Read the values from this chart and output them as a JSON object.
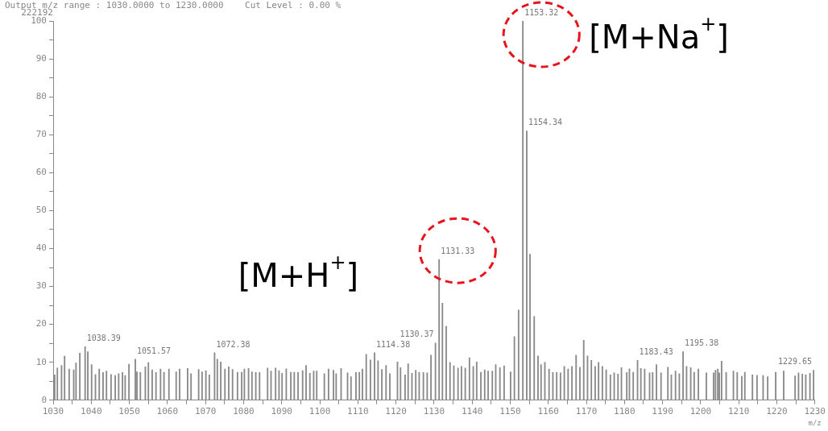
{
  "chart_data": {
    "type": "bar",
    "title": "Output m/z range : 1030.0000 to 1230.0000    Cut Level : 0.00 %",
    "xlabel": "m/z",
    "color": "#8a8a8a",
    "grid": false,
    "legend": false,
    "xlim": [
      1030,
      1230
    ],
    "xticks": [
      1030,
      {
        "value": 1035,
        "label": null
      },
      1040,
      {
        "value": 1045,
        "label": null
      },
      1050,
      {
        "value": 1055,
        "label": null
      },
      1060,
      {
        "value": 1065,
        "label": null
      },
      1070,
      {
        "value": 1075,
        "label": null
      },
      1080,
      {
        "value": 1085,
        "label": null
      },
      1090,
      {
        "value": 1095,
        "label": null
      },
      1100,
      {
        "value": 1105,
        "label": null
      },
      1110,
      {
        "value": 1115,
        "label": null
      },
      1120,
      {
        "value": 1125,
        "label": null
      },
      1130,
      {
        "value": 1135,
        "label": null
      },
      1140,
      {
        "value": 1145,
        "label": null
      },
      1150,
      {
        "value": 1155,
        "label": null
      },
      1160,
      {
        "value": 1165,
        "label": null
      },
      1170,
      {
        "value": 1175,
        "label": null
      },
      1180,
      {
        "value": 1185,
        "label": null
      },
      1190,
      {
        "value": 1195,
        "label": null
      },
      1200,
      {
        "value": 1205,
        "label": null
      },
      1210,
      {
        "value": 1215,
        "label": null
      },
      1220,
      {
        "value": 1225,
        "label": null
      },
      1230
    ],
    "ylim": [
      0,
      100
    ],
    "yticks": [
      0,
      {
        "value": 5,
        "label": null
      },
      10,
      {
        "value": 15,
        "label": null
      },
      20,
      {
        "value": 25,
        "label": null
      },
      30,
      {
        "value": 35,
        "label": null
      },
      40,
      {
        "value": 45,
        "label": null
      },
      50,
      {
        "value": 55,
        "label": null
      },
      60,
      {
        "value": 65,
        "label": null
      },
      70,
      {
        "value": 75,
        "label": null
      },
      80,
      {
        "value": 85,
        "label": null
      },
      90,
      {
        "value": 95,
        "label": null
      },
      100
    ],
    "x": [
      1030.4,
      1031.1,
      1032.2,
      1033.0,
      1034.2,
      1035.4,
      1036.0,
      1037.0,
      1038.39,
      1039.1,
      1040.1,
      1041.1,
      1042.1,
      1043.1,
      1044.0,
      1045.2,
      1046.3,
      1047.2,
      1048.2,
      1048.9,
      1049.9,
      1051.57,
      1052.0,
      1052.9,
      1054.2,
      1055.0,
      1056.0,
      1057.0,
      1058.2,
      1059.1,
      1060.4,
      1062.3,
      1063.2,
      1065.3,
      1066.2,
      1068.2,
      1069.1,
      1070.1,
      1071.0,
      1072.38,
      1073.1,
      1074.0,
      1075.1,
      1076.1,
      1077.1,
      1078.4,
      1079.5,
      1080.2,
      1081.3,
      1082.2,
      1083.2,
      1084.2,
      1086.3,
      1087.2,
      1088.4,
      1089.3,
      1090.1,
      1091.2,
      1092.4,
      1093.3,
      1094.3,
      1095.5,
      1096.4,
      1097.4,
      1098.4,
      1099.2,
      1101.2,
      1102.3,
      1103.6,
      1104.3,
      1105.6,
      1107.3,
      1108.2,
      1109.5,
      1110.4,
      1111.2,
      1112.2,
      1113.3,
      1114.38,
      1115.3,
      1116.3,
      1117.4,
      1118.4,
      1120.4,
      1121.2,
      1122.4,
      1123.2,
      1124.2,
      1125.2,
      1126.1,
      1127.2,
      1128.2,
      1129.2,
      1130.37,
      1131.33,
      1132.2,
      1133.2,
      1134.2,
      1135.2,
      1136.3,
      1137.2,
      1138.2,
      1139.3,
      1140.3,
      1141.2,
      1142.3,
      1143.3,
      1144.2,
      1145.3,
      1146.2,
      1147.3,
      1148.4,
      1150.1,
      1151.1,
      1152.2,
      1153.32,
      1154.34,
      1155.2,
      1156.3,
      1157.3,
      1158.1,
      1159.1,
      1160.2,
      1161.2,
      1162.2,
      1163.2,
      1164.2,
      1165.2,
      1166.2,
      1167.3,
      1168.3,
      1169.3,
      1170.3,
      1171.3,
      1172.3,
      1173.2,
      1174.2,
      1175.2,
      1176.3,
      1177.3,
      1178.3,
      1179.2,
      1180.6,
      1181.3,
      1182.3,
      1183.43,
      1184.3,
      1185.3,
      1186.6,
      1187.4,
      1188.4,
      1189.6,
      1191.4,
      1192.3,
      1193.4,
      1194.4,
      1195.38,
      1196.3,
      1197.4,
      1198.3,
      1199.4,
      1201.5,
      1203.4,
      1203.9,
      1204.5,
      1204.9,
      1205.5,
      1206.7,
      1208.6,
      1209.6,
      1210.8,
      1211.6,
      1213.6,
      1214.8,
      1216.4,
      1217.6,
      1219.7,
      1221.8,
      1224.8,
      1225.7,
      1226.7,
      1227.6,
      1228.7,
      1229.65
    ],
    "values": [
      6.7,
      8.5,
      9.2,
      11.6,
      8.2,
      8.0,
      9.8,
      12.4,
      14.1,
      12.8,
      9.4,
      6.8,
      8.2,
      7.3,
      7.7,
      6.8,
      6.5,
      7.0,
      7.3,
      6.5,
      9.5,
      10.8,
      7.5,
      7.3,
      8.8,
      9.9,
      8.0,
      7.3,
      8.2,
      7.4,
      8.2,
      7.5,
      8.2,
      8.4,
      7.0,
      8.1,
      7.5,
      7.8,
      6.7,
      12.5,
      10.8,
      10.1,
      8.2,
      8.8,
      8.1,
      7.4,
      7.4,
      8.2,
      8.4,
      7.5,
      7.3,
      7.3,
      8.5,
      7.7,
      8.5,
      7.8,
      7.1,
      8.3,
      7.4,
      7.4,
      7.3,
      7.8,
      9.2,
      7.1,
      7.7,
      7.7,
      7.0,
      8.2,
      7.9,
      7.0,
      8.4,
      7.2,
      6.2,
      7.3,
      7.4,
      8.2,
      12.1,
      10.6,
      12.5,
      10.4,
      8.1,
      9.2,
      7.0,
      10.1,
      8.6,
      6.7,
      9.6,
      7.1,
      7.9,
      7.4,
      7.3,
      7.2,
      11.9,
      15.1,
      37.1,
      25.6,
      19.5,
      10.0,
      9.1,
      8.5,
      8.9,
      8.5,
      11.2,
      8.9,
      10.1,
      7.4,
      8.0,
      7.7,
      7.7,
      9.4,
      8.6,
      9.1,
      7.5,
      16.8,
      23.8,
      100,
      71,
      38.5,
      22.1,
      11.7,
      9.4,
      10.0,
      8.2,
      7.3,
      7.3,
      7.2,
      8.9,
      8.2,
      8.9,
      11.9,
      8.7,
      15.8,
      11.7,
      10.5,
      8.9,
      10.0,
      8.9,
      8.0,
      6.7,
      7.2,
      6.9,
      8.6,
      7.3,
      8.3,
      7.4,
      10.5,
      8.4,
      8.2,
      7.2,
      7.3,
      9.4,
      7.2,
      8.7,
      6.7,
      7.7,
      7.0,
      12.8,
      8.9,
      8.6,
      7.4,
      8.2,
      7.2,
      7.2,
      7.9,
      8.2,
      7.2,
      10.3,
      7.3,
      7.7,
      7.3,
      6.3,
      7.4,
      6.7,
      6.6,
      6.5,
      6.2,
      7.4,
      7.7,
      6.4,
      7.2,
      6.9,
      6.7,
      7.1,
      7.9
    ],
    "annotations": [
      "222192",
      {
        "text": "1038.39",
        "x": 1038.39,
        "y": 14.1
      },
      {
        "text": "1051.57",
        "x": 1051.57,
        "y": 10.8
      },
      {
        "text": "1072.38",
        "x": 1072.38,
        "y": 12.5
      },
      {
        "text": "1114.38",
        "x": 1114.38,
        "y": 12.5
      },
      {
        "text": "1130.37",
        "x": 1130.37,
        "y": 15.1
      },
      {
        "text": "1131.33",
        "x": 1131.33,
        "y": 37.1
      },
      {
        "text": "1153.32",
        "x": 1153.32,
        "y": 100
      },
      {
        "text": "1154.34",
        "x": 1154.34,
        "y": 71
      },
      {
        "text": "1183.43",
        "x": 1183.43,
        "y": 10.5
      },
      {
        "text": "1195.38",
        "x": 1195.38,
        "y": 12.8
      },
      {
        "text": "1229.65",
        "x": 1229.65,
        "y": 7.9
      },
      {
        "text": "[M+H$^{+}$]",
        "x": 1131.33,
        "y": 37.1
      },
      {
        "text": "[M+Na$^{+}$]",
        "x": 1153.32,
        "y": 100
      }
    ]
  }
}
